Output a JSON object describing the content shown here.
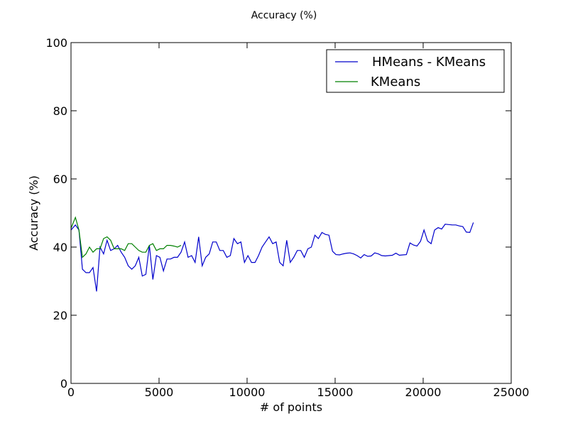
{
  "chart_data": {
    "type": "line",
    "title": "Accuracy (%)",
    "xlabel": "# of points",
    "ylabel": "Accuracy (%)",
    "xlim": [
      0,
      25000
    ],
    "ylim": [
      0,
      100
    ],
    "xticks": [
      0,
      5000,
      10000,
      15000,
      20000,
      25000
    ],
    "yticks": [
      0,
      20,
      40,
      60,
      80,
      100
    ],
    "grid": false,
    "legend_position": "top-right",
    "series": [
      {
        "name": "HMeans - KMeans",
        "color": "#0000cc",
        "x": [
          0,
          250,
          450,
          650,
          850,
          1050,
          1250,
          1450,
          1650,
          1850,
          2050,
          2250,
          2450,
          2650,
          2850,
          3050,
          3250,
          3450,
          3650,
          3850,
          4050,
          4250,
          4450,
          4650,
          4850,
          5050,
          5250,
          5450,
          5650,
          5850,
          6050,
          6250,
          6450,
          6650,
          6850,
          7050,
          7250,
          7450,
          7650,
          7850,
          8050,
          8250,
          8450,
          8650,
          8850,
          9050,
          9250,
          9450,
          9650,
          9850,
          10050,
          10250,
          10450,
          10650,
          10850,
          11050,
          11250,
          11450,
          11650,
          11850,
          12050,
          12250,
          12450,
          12650,
          12850,
          13050,
          13250,
          13450,
          13650,
          13850,
          14050,
          14250,
          14450,
          14650,
          14850,
          15050,
          15250,
          15450,
          15650,
          15850,
          16050,
          16250,
          16450,
          16650,
          16850,
          17050,
          17250,
          17450,
          17650,
          17850,
          18050,
          18250,
          18450,
          18650,
          18850,
          19050,
          19250,
          19450,
          19650,
          19850,
          20050,
          20250,
          20450,
          20650,
          20850,
          21050,
          21250,
          21450,
          21650,
          21850,
          22050,
          22250,
          22450,
          22650,
          22850
        ],
        "values": [
          45,
          46.5,
          45,
          33.5,
          32.5,
          32.5,
          34,
          27,
          40,
          38,
          42,
          39,
          39.5,
          40.5,
          38.5,
          37,
          34.5,
          33.5,
          34.5,
          37,
          31.5,
          32,
          40.5,
          30.5,
          37.5,
          37,
          33,
          36.5,
          36.5,
          37,
          37,
          38.5,
          41.5,
          37,
          37.5,
          35.5,
          43,
          34.5,
          37,
          38,
          41.5,
          41.5,
          39,
          39,
          37,
          37.5,
          42.5,
          41,
          41.5,
          35.5,
          37.5,
          35.5,
          35.5,
          37.5,
          40,
          41.5,
          43,
          41,
          41.5,
          35.5,
          34.5,
          42,
          35.5,
          37,
          39,
          39,
          37,
          39.5,
          40,
          43.5,
          42.5,
          44.3,
          43.7,
          43.5,
          38.8,
          37.8,
          37.7,
          38,
          38.2,
          38.3,
          38,
          37.5,
          36.8,
          37.8,
          37.3,
          37.4,
          38.3,
          38,
          37.5,
          37.4,
          37.5,
          37.6,
          38.2,
          37.6,
          37.7,
          37.8,
          41.2,
          40.6,
          40.3,
          41.7,
          45,
          41.8,
          41,
          45,
          45.7,
          45.3,
          46.7,
          46.6,
          46.5,
          46.5,
          46.2,
          46,
          44.4,
          44.3,
          47.2
        ]
      },
      {
        "name": "KMeans",
        "color": "#008000",
        "x": [
          0,
          250,
          450,
          650,
          850,
          1050,
          1250,
          1450,
          1650,
          1850,
          2050,
          2250,
          2450,
          2650,
          2850,
          3050,
          3250,
          3450,
          3650,
          3850,
          4050,
          4250,
          4450,
          4650,
          4850,
          5050,
          5250,
          5450,
          5650,
          5850,
          6050,
          6250
        ],
        "values": [
          45.5,
          48.7,
          45,
          37,
          38,
          40,
          38.5,
          39.5,
          39.5,
          42.5,
          43,
          42,
          39.5,
          39.5,
          39.5,
          39,
          41,
          41,
          40,
          39,
          38.5,
          38.5,
          40.5,
          41,
          39,
          39.5,
          39.5,
          40.5,
          40.5,
          40.3,
          40,
          40.5
        ]
      }
    ]
  }
}
